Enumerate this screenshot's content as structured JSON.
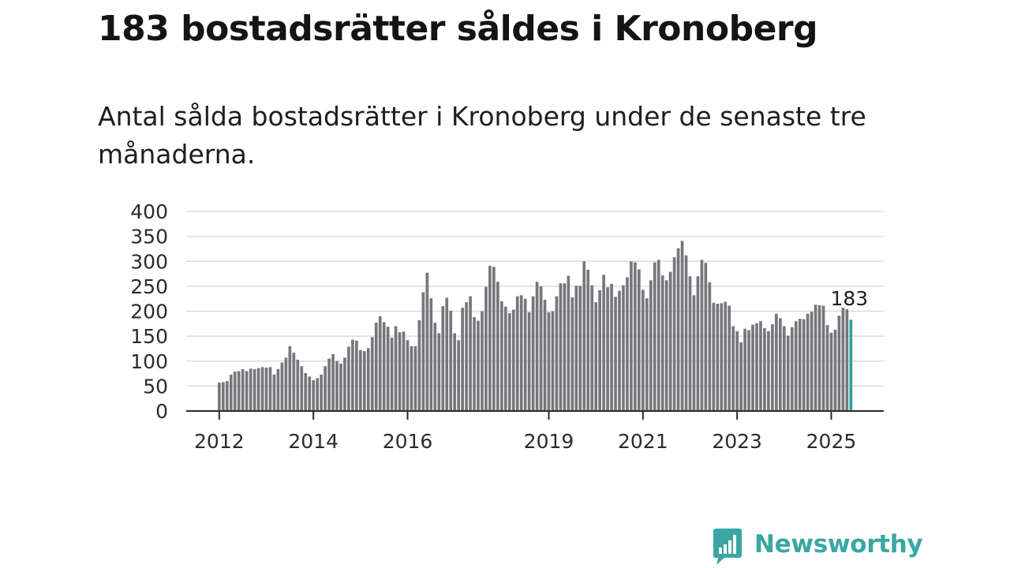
{
  "header": {
    "title": "183 bostadsrätter såldes i Kronoberg",
    "subtitle": "Antal sålda bostadsrätter i Kronoberg under de senaste tre månaderna."
  },
  "brand": {
    "name": "Newsworthy",
    "icon": "newsworthy-logo-icon",
    "color": "#3aa7a4"
  },
  "chart_data": {
    "type": "bar",
    "title": "",
    "xlabel": "",
    "ylabel": "",
    "ylim": [
      0,
      400
    ],
    "yticks": [
      0,
      50,
      100,
      150,
      200,
      250,
      300,
      350,
      400
    ],
    "grid": true,
    "legend": "none",
    "x_start": "2012-01",
    "x_end": "2025-05",
    "xticks": [
      "2012",
      "2014",
      "2016",
      "2019",
      "2021",
      "2023",
      "2025"
    ],
    "bar_color": "#77767c",
    "highlight_color": "#2aa3a3",
    "highlight_label": "183",
    "series": [
      {
        "values": [
          57,
          58,
          60,
          73,
          79,
          80,
          84,
          80,
          85,
          84,
          86,
          88,
          87,
          88,
          73,
          84,
          97,
          107,
          130,
          117,
          103,
          90,
          76,
          69,
          62,
          66,
          73,
          90,
          105,
          114,
          100,
          95,
          107,
          129,
          143,
          141,
          122,
          120,
          126,
          148,
          177,
          190,
          178,
          169,
          147,
          170,
          158,
          159,
          142,
          130,
          130,
          182,
          238,
          277,
          226,
          177,
          156,
          210,
          227,
          201,
          156,
          142,
          207,
          218,
          230,
          188,
          181,
          200,
          249,
          291,
          289,
          259,
          220,
          209,
          196,
          203,
          230,
          232,
          225,
          198,
          230,
          259,
          250,
          223,
          198,
          200,
          230,
          256,
          256,
          271,
          228,
          251,
          251,
          300,
          283,
          252,
          218,
          242,
          273,
          248,
          255,
          229,
          241,
          252,
          268,
          300,
          298,
          284,
          243,
          226,
          262,
          298,
          303,
          272,
          262,
          279,
          308,
          326,
          341,
          312,
          270,
          232,
          270,
          303,
          297,
          258,
          217,
          215,
          216,
          219,
          211,
          170,
          160,
          138,
          165,
          162,
          173,
          176,
          180,
          166,
          160,
          174,
          195,
          186,
          170,
          151,
          168,
          180,
          185,
          184,
          195,
          199,
          213,
          212,
          211,
          172,
          157,
          163,
          191,
          207,
          204,
          183
        ]
      }
    ]
  }
}
